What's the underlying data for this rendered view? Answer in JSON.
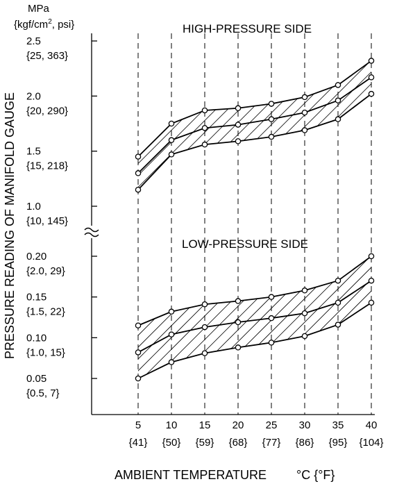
{
  "chart_data": {
    "type": "line",
    "title": "",
    "xlabel": "AMBIENT TEMPERATURE",
    "xlabel_unit": "°C {°F}",
    "ylabel": "PRESSURE READING OF MANIFOLD GAUGE",
    "y_unit_line1": "MPa",
    "y_unit_line2_prefix": "{kgf/cm",
    "y_unit_line2_sup": "2",
    "y_unit_line2_suffix": ", psi}",
    "x": [
      5,
      10,
      15,
      20,
      25,
      30,
      35,
      40
    ],
    "x_tick_labels": [
      {
        "c": "5",
        "f": "{41}"
      },
      {
        "c": "10",
        "f": "{50}"
      },
      {
        "c": "15",
        "f": "{59}"
      },
      {
        "c": "20",
        "f": "{68}"
      },
      {
        "c": "25",
        "f": "{77}"
      },
      {
        "c": "30",
        "f": "{86}"
      },
      {
        "c": "35",
        "f": "{95}"
      },
      {
        "c": "40",
        "f": "{104}"
      }
    ],
    "axis_break": true,
    "grid": "vertical dashed lines at each temperature",
    "high_pressure": {
      "label": "HIGH-PRESSURE SIDE",
      "ylim": [
        1.0,
        2.5
      ],
      "y_ticks": [
        {
          "value": 2.5,
          "mpa": "2.5",
          "alt": "{25, 363}"
        },
        {
          "value": 2.0,
          "mpa": "2.0",
          "alt": "{20, 290}"
        },
        {
          "value": 1.5,
          "mpa": "1.5",
          "alt": "{15, 218}"
        },
        {
          "value": 1.0,
          "mpa": "1.0",
          "alt": "{10, 145}"
        }
      ],
      "series": [
        {
          "values": [
            1.45,
            1.75,
            1.87,
            1.89,
            1.93,
            1.99,
            2.1,
            2.32
          ]
        },
        {
          "values": [
            1.3,
            1.6,
            1.71,
            1.74,
            1.79,
            1.85,
            1.96,
            2.17
          ]
        },
        {
          "values": [
            1.15,
            1.47,
            1.56,
            1.59,
            1.63,
            1.69,
            1.79,
            2.02
          ]
        }
      ]
    },
    "low_pressure": {
      "label": "LOW-PRESSURE SIDE",
      "ylim": [
        0.02,
        0.2
      ],
      "y_ticks": [
        {
          "value": 0.2,
          "mpa": "0.20",
          "alt": "{2.0, 29}"
        },
        {
          "value": 0.15,
          "mpa": "0.15",
          "alt": "{1.5, 22}"
        },
        {
          "value": 0.1,
          "mpa": "0.10",
          "alt": "{1.0, 15}"
        },
        {
          "value": 0.05,
          "mpa": "0.05",
          "alt": "{0.5, 7}"
        }
      ],
      "series": [
        {
          "values": [
            0.115,
            0.132,
            0.141,
            0.145,
            0.15,
            0.158,
            0.17,
            0.2
          ]
        },
        {
          "values": [
            0.082,
            0.104,
            0.113,
            0.119,
            0.124,
            0.13,
            0.143,
            0.17
          ]
        },
        {
          "values": [
            0.05,
            0.07,
            0.081,
            0.088,
            0.094,
            0.102,
            0.116,
            0.143
          ]
        }
      ]
    }
  }
}
